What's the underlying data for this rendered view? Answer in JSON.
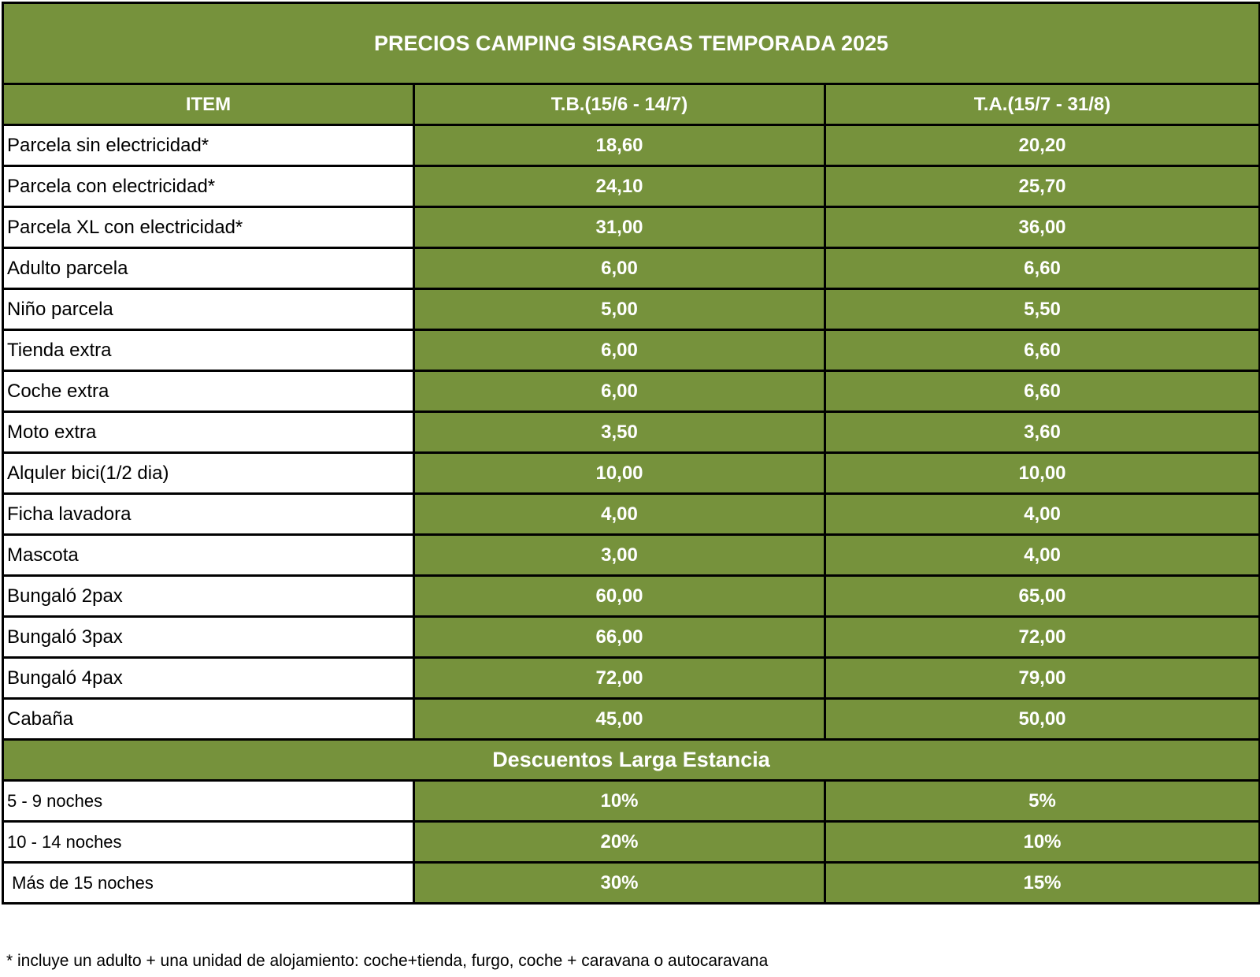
{
  "title": "PRECIOS CAMPING SISARGAS TEMPORADA 2025",
  "columns": [
    "ITEM",
    "T.B.(15/6 - 14/7)",
    "T.A.(15/7 - 31/8)"
  ],
  "rows": [
    {
      "item": "Parcela sin electricidad*",
      "tb": "18,60",
      "ta": "20,20"
    },
    {
      "item": "Parcela con electricidad*",
      "tb": "24,10",
      "ta": "25,70"
    },
    {
      "item": "Parcela XL con electricidad*",
      "tb": "31,00",
      "ta": "36,00"
    },
    {
      "item": "Adulto parcela",
      "tb": "6,00",
      "ta": "6,60"
    },
    {
      "item": "Niño parcela",
      "tb": "5,00",
      "ta": "5,50"
    },
    {
      "item": "Tienda extra",
      "tb": "6,00",
      "ta": "6,60"
    },
    {
      "item": "Coche extra",
      "tb": "6,00",
      "ta": "6,60"
    },
    {
      "item": "Moto extra",
      "tb": "3,50",
      "ta": "3,60"
    },
    {
      "item": "Alquler bici(1/2 dia)",
      "tb": "10,00",
      "ta": "10,00"
    },
    {
      "item": "Ficha lavadora",
      "tb": "4,00",
      "ta": "4,00"
    },
    {
      "item": "Mascota",
      "tb": "3,00",
      "ta": "4,00"
    },
    {
      "item": "Bungaló 2pax",
      "tb": "60,00",
      "ta": "65,00"
    },
    {
      "item": "Bungaló 3pax",
      "tb": "66,00",
      "ta": "72,00"
    },
    {
      "item": "Bungaló 4pax",
      "tb": "72,00",
      "ta": "79,00"
    },
    {
      "item": "Cabaña",
      "tb": "45,00",
      "ta": "50,00"
    }
  ],
  "discounts": {
    "title": "Descuentos Larga Estancia",
    "rows": [
      {
        "item": "5 - 9 noches",
        "tb": "10%",
        "ta": "5%"
      },
      {
        "item": "10 - 14 noches",
        "tb": "20%",
        "ta": "10%"
      },
      {
        "item": " Más de 15 noches",
        "tb": "30%",
        "ta": "15%"
      }
    ]
  },
  "footnote": "* incluye un adulto + una unidad de alojamiento: coche+tienda, furgo, coche + caravana o autocaravana",
  "colors": {
    "green": "#76923c",
    "border": "#000000",
    "text_on_green": "#ffffff"
  }
}
